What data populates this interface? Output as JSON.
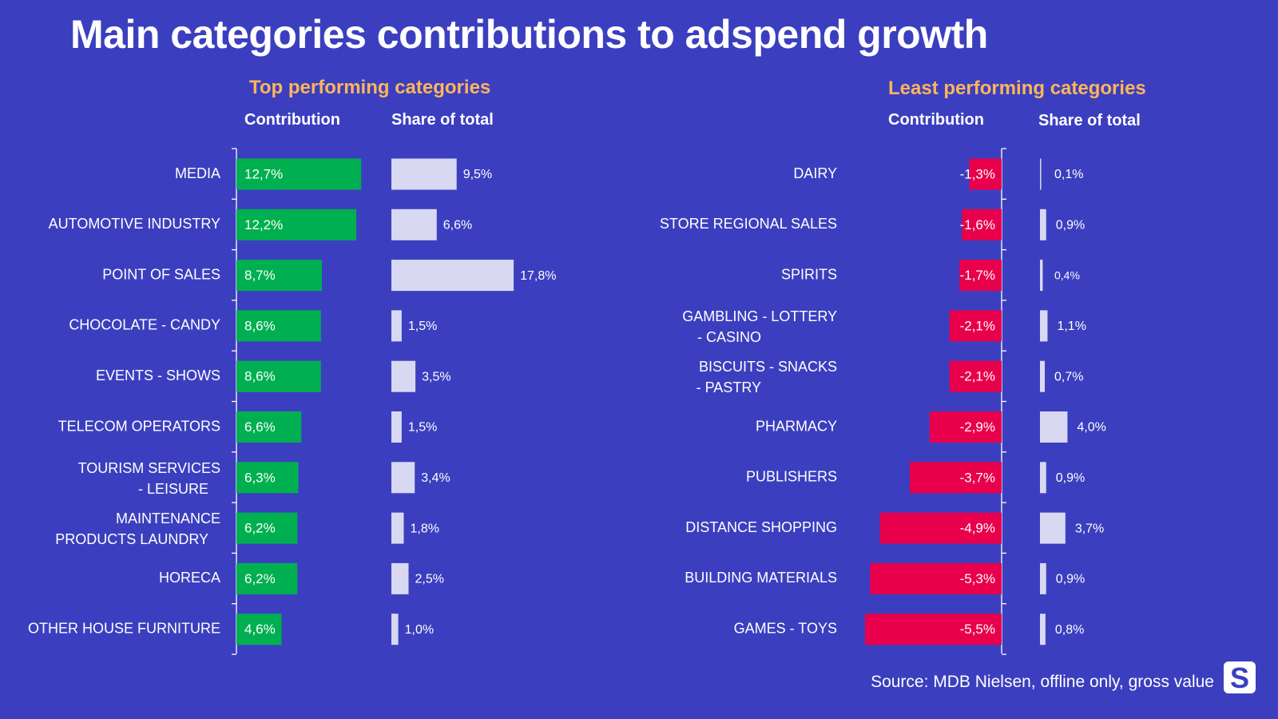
{
  "title": "Main categories contributions to adspend growth",
  "source": "Source:  MDB Nielsen, offline only, gross value",
  "logo_letter": "S",
  "colors": {
    "background": "#3b3fbf",
    "positive": "#00b050",
    "negative": "#e8004c",
    "share": "#d8d8f2",
    "heading": "#ffb55a"
  },
  "chart_data": [
    {
      "type": "bar",
      "panel_title": "Top performing categories",
      "contribution_label": "Contribution",
      "share_label": "Share of total",
      "categories": [
        "MEDIA",
        "AUTOMOTIVE INDUSTRY",
        "POINT OF SALES",
        "CHOCOLATE - CANDY",
        "EVENTS - SHOWS",
        "TELECOM OPERATORS",
        "TOURISM SERVICES - LEISURE",
        "MAINTENANCE PRODUCTS LAUNDRY",
        "HORECA",
        "OTHER HOUSE FURNITURE"
      ],
      "series": [
        {
          "values": [
            12.7,
            12.2,
            8.7,
            8.6,
            8.6,
            6.6,
            6.3,
            6.2,
            6.2,
            4.6
          ],
          "labels": [
            "12,7%",
            "12,2%",
            "8,7%",
            "8,6%",
            "8,6%",
            "6,6%",
            "6,3%",
            "6,2%",
            "6,2%",
            "4,6%"
          ]
        },
        {
          "values": [
            9.5,
            6.6,
            17.8,
            1.5,
            3.5,
            1.5,
            3.4,
            1.8,
            2.5,
            1.0
          ],
          "labels": [
            "9,5%",
            "6,6%",
            "17,8%",
            "1,5%",
            "3,5%",
            "1,5%",
            "3,4%",
            "1,8%",
            "2,5%",
            "1,0%"
          ]
        }
      ]
    },
    {
      "type": "bar",
      "panel_title": "Least performing categories",
      "contribution_label": "Contribution",
      "share_label": "Share of total",
      "categories": [
        "DAIRY",
        "STORE REGIONAL SALES",
        "SPIRITS",
        "GAMBLING - LOTTERY - CASINO",
        "BISCUITS - SNACKS - PASTRY",
        "PHARMACY",
        "PUBLISHERS",
        "DISTANCE SHOPPING",
        "BUILDING MATERIALS",
        "GAMES - TOYS"
      ],
      "series": [
        {
          "values": [
            -1.3,
            -1.6,
            -1.7,
            -2.1,
            -2.1,
            -2.9,
            -3.7,
            -4.9,
            -5.3,
            -5.5
          ],
          "labels": [
            "-1,3%",
            "-1,6%",
            "-1,7%",
            "-2,1%",
            "-2,1%",
            "-2,9%",
            "-3,7%",
            "-4,9%",
            "-5,3%",
            "-5,5%"
          ]
        },
        {
          "values": [
            0.1,
            0.9,
            0.4,
            1.1,
            0.7,
            4.0,
            0.9,
            3.7,
            0.9,
            0.8
          ],
          "labels": [
            "0,1%",
            "0,9%",
            "0,4%",
            "1,1%",
            "0,7%",
            "4,0%",
            "0,9%",
            "3,7%",
            "0,9%",
            "0,8%"
          ]
        }
      ]
    }
  ]
}
